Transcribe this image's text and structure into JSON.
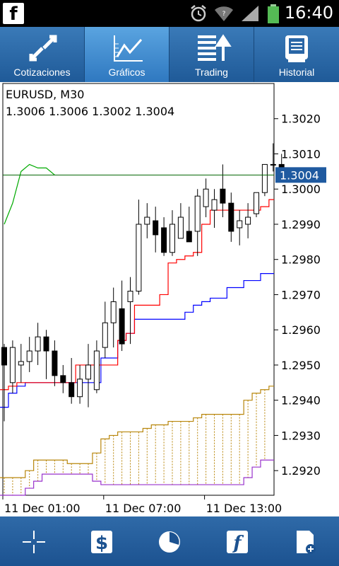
{
  "status": {
    "time": "16:40",
    "app_icon": "facebook-icon"
  },
  "tabs": [
    {
      "label": "Cotizaciones",
      "icon": "quotes-arrows-icon",
      "active": false
    },
    {
      "label": "Gráficos",
      "icon": "chart-line-icon",
      "active": true
    },
    {
      "label": "Trading",
      "icon": "trading-list-icon",
      "active": false
    },
    {
      "label": "Historial",
      "icon": "history-journal-icon",
      "active": false
    }
  ],
  "chart": {
    "symbol_line": "EURUSD, M30",
    "ohlc_line": "1.3006 1.3006 1.3002 1.3004",
    "current_price": "1.3004"
  },
  "bottom_toolbar": [
    {
      "icon": "crosshair-icon"
    },
    {
      "icon": "dollar-order-icon"
    },
    {
      "icon": "period-clock-icon"
    },
    {
      "icon": "indicators-f-icon"
    },
    {
      "icon": "template-add-icon"
    }
  ],
  "colors": {
    "accent": "#2f78c0",
    "price_line": "#006400",
    "bull_candle": "#ffffff",
    "bear_candle": "#000000",
    "tenkan": "#ff0000",
    "kijun": "#0000ff",
    "chikou": "#00aa00",
    "span_a": "#b8860b",
    "span_b": "#9932cc",
    "price_label_bg": "#1f5aa0"
  },
  "chart_data": {
    "type": "candlestick",
    "indicator": "Ichimoku",
    "y_ticks": [
      "1.3020",
      "1.3010",
      "1.3000",
      "1.2990",
      "1.2980",
      "1.2970",
      "1.2960",
      "1.2950",
      "1.2940",
      "1.2930",
      "1.2920"
    ],
    "ylim": [
      1.2913,
      1.303
    ],
    "x_ticks": [
      {
        "label": "11 Dec 01:00",
        "index": 0
      },
      {
        "label": "11 Dec 07:00",
        "index": 12
      },
      {
        "label": "11 Dec 13:00",
        "index": 24
      }
    ],
    "candles": [
      [
        1.2955,
        1.2956,
        1.2934,
        1.295
      ],
      [
        1.2945,
        1.2957,
        1.2942,
        1.2955
      ],
      [
        1.295,
        1.2956,
        1.2945,
        1.2951
      ],
      [
        1.2951,
        1.2958,
        1.2948,
        1.2954
      ],
      [
        1.2954,
        1.2962,
        1.295,
        1.2958
      ],
      [
        1.2958,
        1.296,
        1.2946,
        1.2954
      ],
      [
        1.2954,
        1.2957,
        1.2944,
        1.2947
      ],
      [
        1.2947,
        1.295,
        1.2942,
        1.2945
      ],
      [
        1.2945,
        1.2952,
        1.2939,
        1.2941
      ],
      [
        1.2941,
        1.295,
        1.2939,
        1.2946
      ],
      [
        1.2946,
        1.2956,
        1.2938,
        1.295
      ],
      [
        1.2943,
        1.2957,
        1.2942,
        1.2954
      ],
      [
        1.2955,
        1.2968,
        1.2952,
        1.2962
      ],
      [
        1.2962,
        1.2972,
        1.2955,
        1.2968
      ],
      [
        1.2966,
        1.2974,
        1.2954,
        1.2956
      ],
      [
        1.2968,
        1.2975,
        1.2956,
        1.2971
      ],
      [
        1.2971,
        1.2997,
        1.297,
        1.299
      ],
      [
        1.299,
        1.2996,
        1.2986,
        1.2992
      ],
      [
        1.2991,
        1.2995,
        1.2982,
        1.2987
      ],
      [
        1.2989,
        1.2992,
        1.2981,
        1.2982
      ],
      [
        1.2982,
        1.2994,
        1.2981,
        1.299
      ],
      [
        1.2986,
        1.2996,
        1.2986,
        1.2992
      ],
      [
        1.2988,
        1.2995,
        1.2985,
        1.2985
      ],
      [
        1.2988,
        1.3,
        1.2981,
        1.2998
      ],
      [
        1.2995,
        1.3003,
        1.2992,
        1.3
      ],
      [
        1.2994,
        1.3,
        1.2989,
        1.2997
      ],
      [
        1.3,
        1.3007,
        1.2992,
        1.2996
      ],
      [
        1.2996,
        1.2999,
        1.2985,
        1.2988
      ],
      [
        1.2989,
        1.2994,
        1.2984,
        1.2991
      ],
      [
        1.299,
        1.2996,
        1.2986,
        1.2992
      ],
      [
        1.2993,
        1.2999,
        1.2992,
        1.2999
      ],
      [
        1.2999,
        1.3007,
        1.2998,
        1.3007
      ],
      [
        1.3007,
        1.3013,
        1.3005,
        1.3007
      ],
      [
        1.3007,
        1.301,
        1.3005,
        1.3006
      ],
      [
        1.3006,
        1.3006,
        1.3002,
        1.3004
      ]
    ],
    "tenkan": [
      1.2943,
      1.2944,
      1.2945,
      1.2945,
      1.2945,
      1.2945,
      1.2945,
      1.2945,
      1.2945,
      1.295,
      1.295,
      1.295,
      1.295,
      1.295,
      1.2957,
      1.2959,
      1.2967,
      1.2967,
      1.2967,
      1.297,
      1.2979,
      1.298,
      1.2981,
      1.2982,
      1.299,
      1.2994,
      1.2994,
      1.2994,
      1.2994,
      1.2994,
      1.2994,
      1.2995,
      1.2997,
      1.2999,
      1.2999
    ],
    "kijun": [
      1.2938,
      1.2942,
      1.2944,
      1.2945,
      1.2945,
      1.2945,
      1.2945,
      1.2945,
      1.2945,
      1.2945,
      1.2945,
      1.2945,
      1.2952,
      1.2952,
      1.2957,
      1.2959,
      1.2963,
      1.2963,
      1.2963,
      1.2963,
      1.2963,
      1.2963,
      1.2965,
      1.2967,
      1.2968,
      1.2969,
      1.2969,
      1.2972,
      1.2972,
      1.2974,
      1.2974,
      1.2976,
      1.2976,
      1.2976,
      1.2976
    ],
    "chikou": [
      1.299,
      1.2996,
      1.3005,
      1.3007,
      1.3006,
      1.3006,
      1.3004
    ],
    "span_a": [
      1.2918,
      1.2918,
      1.2918,
      1.292,
      1.2923,
      1.2923,
      1.2923,
      1.2923,
      1.2922,
      1.2922,
      1.2922,
      1.2925,
      1.2929,
      1.293,
      1.2931,
      1.2931,
      1.2931,
      1.2932,
      1.2933,
      1.2933,
      1.2934,
      1.2934,
      1.2934,
      1.2935,
      1.2936,
      1.2936,
      1.2936,
      1.2936,
      1.2936,
      1.294,
      1.2942,
      1.2943,
      1.2944,
      1.2944,
      1.2945,
      1.2945,
      1.2945,
      1.2945
    ],
    "span_b": [
      1.2913,
      1.2913,
      1.2913,
      1.2915,
      1.2917,
      1.2919,
      1.2919,
      1.2919,
      1.2919,
      1.2919,
      1.2919,
      1.2917,
      1.2916,
      1.2916,
      1.2916,
      1.2916,
      1.2916,
      1.2916,
      1.2916,
      1.2916,
      1.2916,
      1.2916,
      1.2916,
      1.2916,
      1.2916,
      1.2916,
      1.2916,
      1.2916,
      1.2916,
      1.2918,
      1.2921,
      1.2923,
      1.2923,
      1.2923,
      1.2924,
      1.2924,
      1.2924,
      1.2924
    ]
  }
}
